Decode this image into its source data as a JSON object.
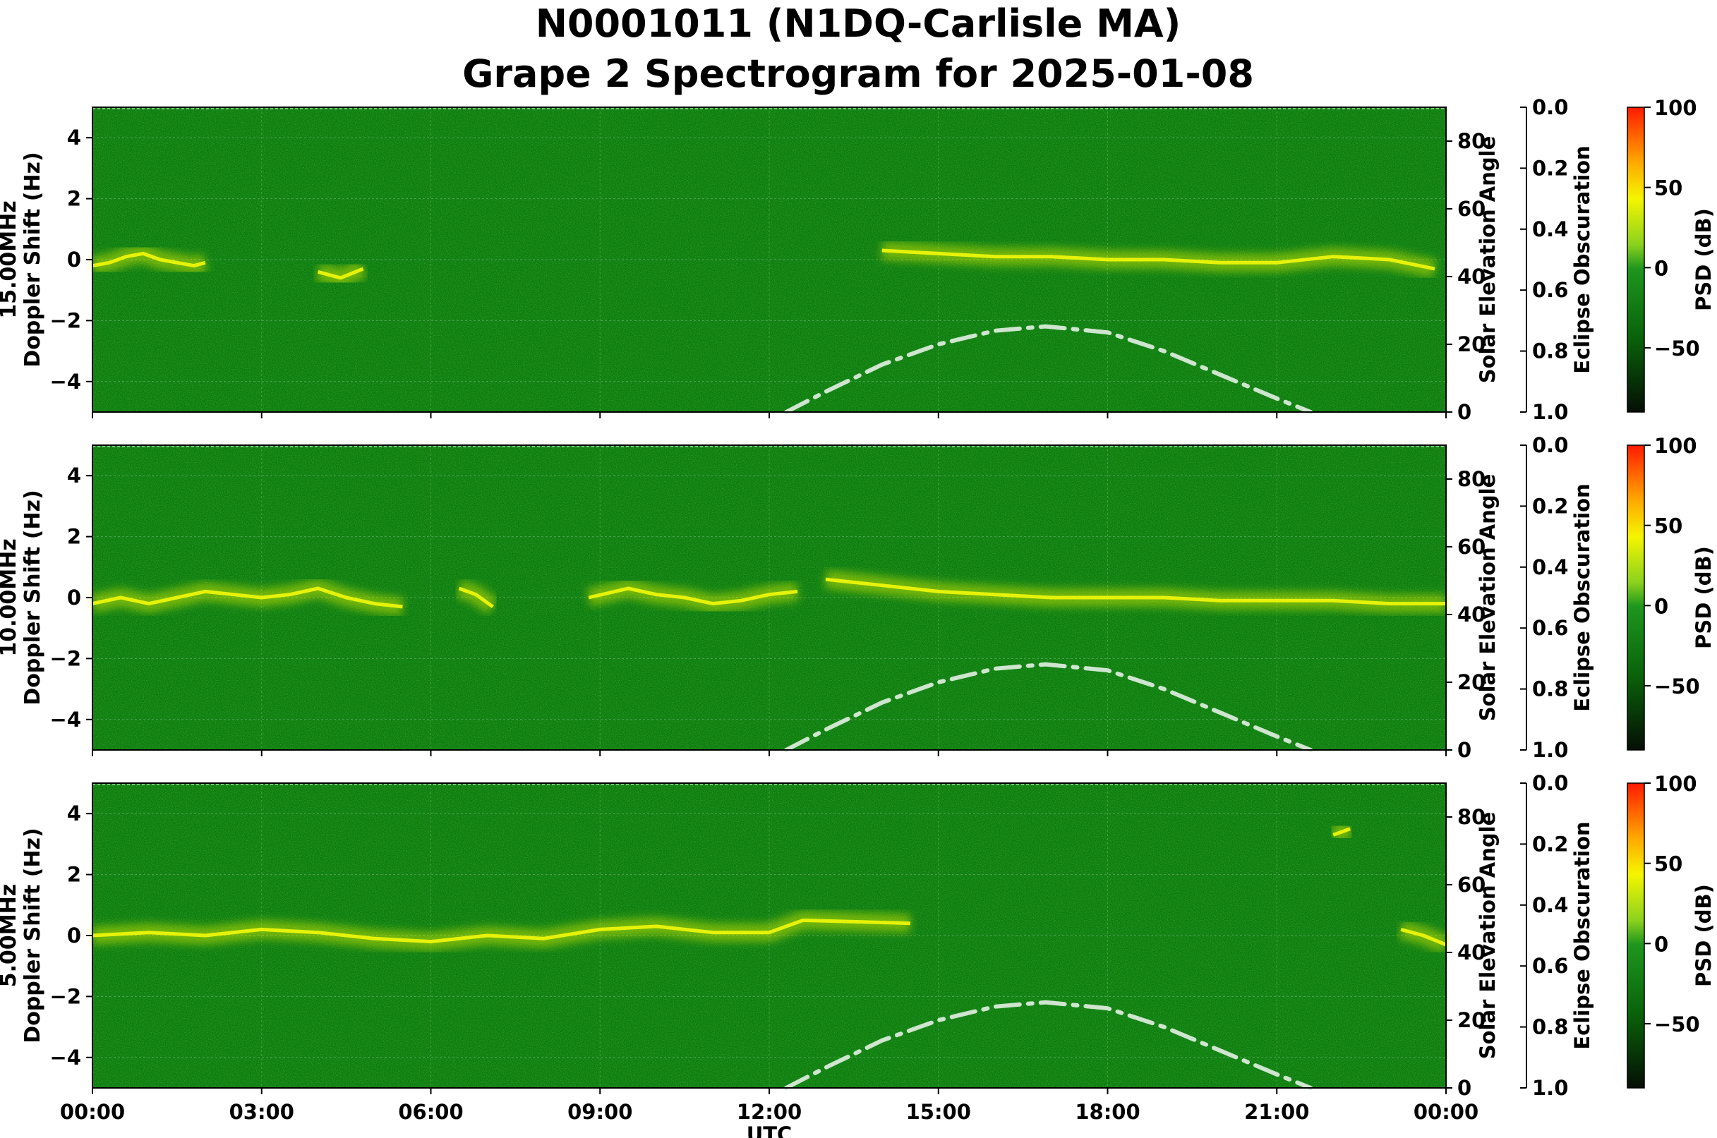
{
  "title_line1": "N0001011 (N1DQ-Carlisle MA)",
  "title_line2": "Grape 2 Spectrogram for 2025-01-08",
  "colors": {
    "spectrogram_base": "#0d7a0d",
    "trace_yellow": "#e6f20a",
    "trace_red": "#f04010",
    "sun_curve": "#cfe5cf"
  },
  "chart_data": {
    "type": "heatmap",
    "xlabel": "UTC",
    "x_ticks": [
      "00:00",
      "03:00",
      "06:00",
      "09:00",
      "12:00",
      "15:00",
      "18:00",
      "21:00",
      "00:00"
    ],
    "x_range_hours": [
      0,
      24
    ],
    "ylabel": "Doppler Shift (Hz)",
    "ylim": [
      -5,
      5
    ],
    "y_ticks": [
      -4,
      -2,
      0,
      2,
      4
    ],
    "y2label": "Solar Elevation Angle",
    "y2lim": [
      0,
      90
    ],
    "y2_ticks": [
      0,
      20,
      40,
      60,
      80
    ],
    "y3label": "Eclipse Obscuration",
    "y3lim": [
      1.0,
      0.0
    ],
    "y3_ticks": [
      "0.0",
      "0.2",
      "0.4",
      "0.6",
      "0.8",
      "1.0"
    ],
    "colorbar_label": "PSD (dB)",
    "colorbar_range": [
      -90,
      100
    ],
    "colorbar_ticks": [
      100,
      50,
      0,
      -50
    ],
    "colorbar_tick_labels": [
      "100",
      "50",
      "0",
      "−50"
    ],
    "solar_elevation": {
      "hours": [
        12.3,
        13,
        14,
        15,
        16,
        16.9,
        18,
        19,
        20,
        21,
        21.6
      ],
      "deg": [
        0,
        6,
        14,
        20,
        24,
        25.3,
        23.5,
        18,
        11,
        4,
        0
      ]
    },
    "panels": [
      {
        "freq_label": "15.00MHz",
        "trace_segments": [
          {
            "hours": [
              0,
              0.3,
              0.6,
              0.9,
              1.2,
              1.5,
              1.8,
              2.0
            ],
            "doppler": [
              -0.2,
              -0.1,
              0.1,
              0.2,
              0.0,
              -0.1,
              -0.2,
              -0.1
            ]
          },
          {
            "hours": [
              4.0,
              4.4,
              4.8
            ],
            "doppler": [
              -0.4,
              -0.6,
              -0.3
            ]
          },
          {
            "hours": [
              14.0,
              15,
              16,
              17,
              18,
              19,
              20,
              21,
              22,
              23,
              23.8
            ],
            "doppler": [
              0.3,
              0.2,
              0.1,
              0.1,
              0.0,
              0.0,
              -0.1,
              -0.1,
              0.1,
              0.0,
              -0.3
            ]
          }
        ]
      },
      {
        "freq_label": "10.00MHz",
        "trace_segments": [
          {
            "hours": [
              0,
              0.5,
              1,
              1.5,
              2,
              2.5,
              3,
              3.5,
              4,
              4.5,
              5,
              5.5
            ],
            "doppler": [
              -0.2,
              0.0,
              -0.2,
              0.0,
              0.2,
              0.1,
              0.0,
              0.1,
              0.3,
              0.0,
              -0.2,
              -0.3
            ]
          },
          {
            "hours": [
              6.5,
              6.8,
              7.1
            ],
            "doppler": [
              0.3,
              0.1,
              -0.3
            ]
          },
          {
            "hours": [
              8.8,
              9.5,
              10,
              10.5,
              11,
              11.5,
              12,
              12.5
            ],
            "doppler": [
              0.0,
              0.3,
              0.1,
              0.0,
              -0.2,
              -0.1,
              0.1,
              0.2
            ]
          },
          {
            "hours": [
              13,
              14,
              15,
              16,
              17,
              18,
              19,
              20,
              21,
              22,
              23,
              24
            ],
            "doppler": [
              0.6,
              0.4,
              0.2,
              0.1,
              0.0,
              0.0,
              0.0,
              -0.1,
              -0.1,
              -0.1,
              -0.2,
              -0.2
            ]
          }
        ]
      },
      {
        "freq_label": "5.00MHz",
        "trace_segments": [
          {
            "hours": [
              0,
              1,
              2,
              3,
              4,
              5,
              6,
              7,
              8,
              9,
              10,
              11,
              12,
              12.6,
              14.5
            ],
            "doppler": [
              0.0,
              0.1,
              0.0,
              0.2,
              0.1,
              -0.1,
              -0.2,
              0.0,
              -0.1,
              0.2,
              0.3,
              0.1,
              0.1,
              0.5,
              0.4
            ]
          },
          {
            "hours": [
              22,
              22.3
            ],
            "doppler": [
              3.3,
              3.5
            ]
          },
          {
            "hours": [
              23.2,
              23.6,
              24
            ],
            "doppler": [
              0.2,
              0.0,
              -0.3
            ]
          }
        ]
      }
    ]
  }
}
